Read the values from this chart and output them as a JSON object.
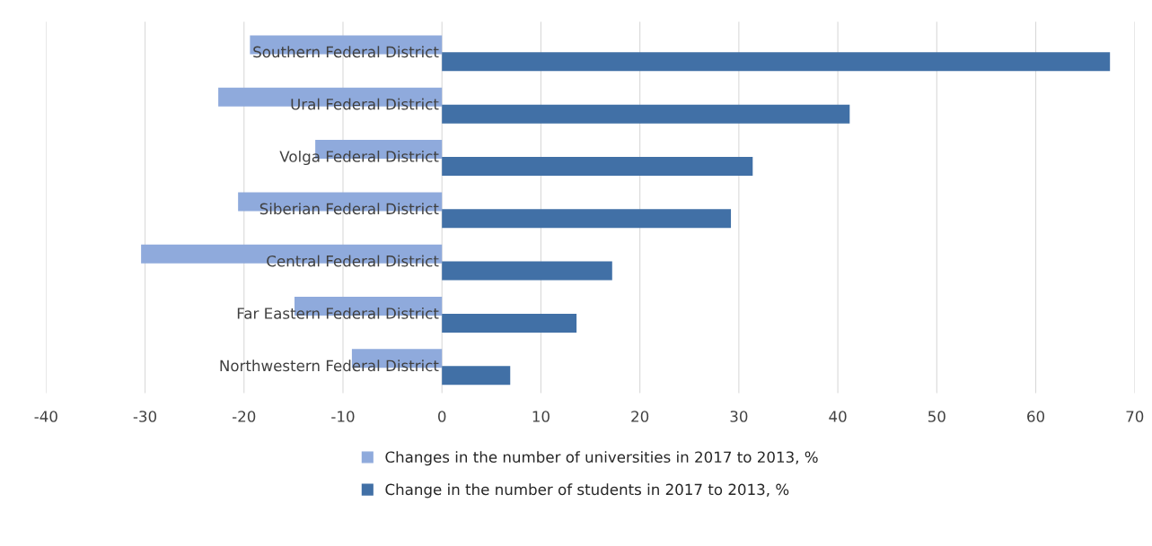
{
  "chart_data": {
    "type": "bar",
    "orientation": "horizontal",
    "categories": [
      "Southern Federal District",
      "Ural Federal District",
      "Volga Federal District",
      "Siberian Federal District",
      "Central Federal District",
      "Far Eastern Federal District",
      "Northwestern Federal District"
    ],
    "series": [
      {
        "name": "Changes in the number of universities in 2017 to 2013, %",
        "color": "#8faadc",
        "values": [
          -19.4,
          -22.6,
          -12.8,
          -20.6,
          -30.4,
          -14.9,
          -9.1
        ]
      },
      {
        "name": "Change in the number of students in 2017 to 2013, %",
        "color": "#4170a6",
        "values": [
          67.5,
          41.2,
          31.4,
          29.2,
          17.2,
          13.6,
          6.9
        ]
      }
    ],
    "xlim": [
      -40,
      70
    ],
    "xticks": [
      -40,
      -30,
      -20,
      -10,
      0,
      10,
      20,
      30,
      40,
      50,
      60,
      70
    ],
    "grid": "x",
    "legend": "bottom"
  }
}
